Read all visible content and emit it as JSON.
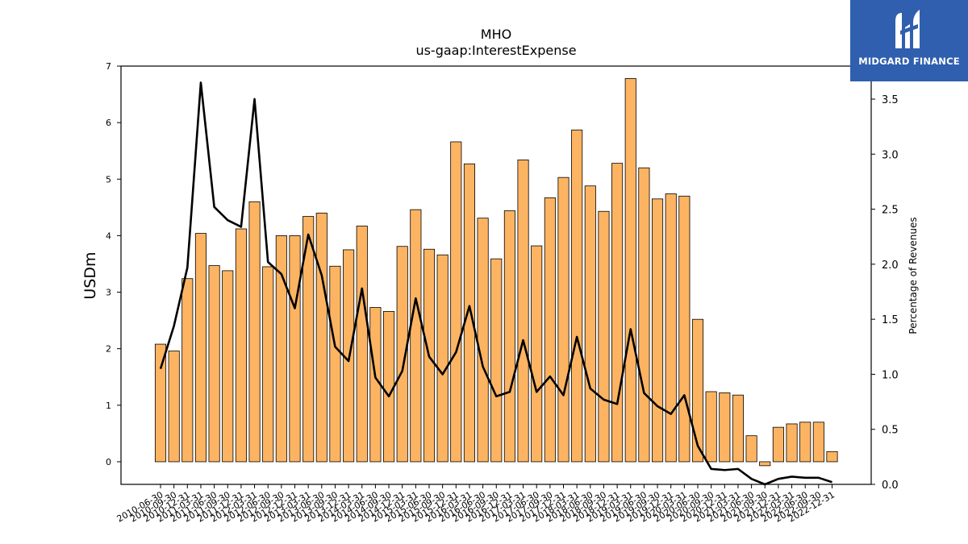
{
  "chart_data": {
    "type": "bar",
    "title": "MHO",
    "subtitle": "us-gaap:InterestExpense",
    "ylabel": "USDm",
    "y2label": "Percentage of Revenues",
    "ylim": [
      -0.4,
      7
    ],
    "y2lim": [
      0,
      3.8
    ],
    "yticks": [
      0,
      1,
      2,
      3,
      4,
      5,
      6,
      7
    ],
    "y2ticks": [
      0.0,
      0.5,
      1.0,
      1.5,
      2.0,
      2.5,
      3.0,
      3.5
    ],
    "bar_color": "#fdb462",
    "line_color": "#000000",
    "categories": [
      "2010-06-30",
      "2010-09-30",
      "2010-12-31",
      "2011-03-31",
      "2011-06-30",
      "2011-09-30",
      "2011-12-31",
      "2012-03-31",
      "2012-06-30",
      "2012-09-30",
      "2012-12-31",
      "2013-03-31",
      "2013-06-30",
      "2013-09-30",
      "2013-12-31",
      "2014-03-31",
      "2014-06-30",
      "2014-09-30",
      "2014-12-31",
      "2015-03-31",
      "2015-06-30",
      "2015-09-30",
      "2015-12-31",
      "2016-03-31",
      "2016-06-30",
      "2016-09-30",
      "2016-12-31",
      "2017-03-31",
      "2017-06-30",
      "2017-09-30",
      "2017-12-31",
      "2018-03-31",
      "2018-06-30",
      "2018-09-30",
      "2018-12-31",
      "2019-03-31",
      "2019-06-30",
      "2019-09-30",
      "2019-12-31",
      "2020-03-31",
      "2020-06-30",
      "2020-09-30",
      "2020-12-31",
      "2021-03-31",
      "2021-06-30",
      "2021-09-30",
      "2021-12-31",
      "2022-03-31",
      "2022-06-30",
      "2022-09-30",
      "2022-12-31"
    ],
    "series": [
      {
        "kind": "bar",
        "axis": "left",
        "values": [
          2.08,
          1.96,
          3.24,
          4.04,
          3.47,
          3.38,
          4.12,
          4.6,
          3.45,
          4.0,
          4.0,
          4.34,
          4.4,
          3.46,
          3.75,
          4.17,
          2.73,
          2.66,
          3.81,
          4.46,
          3.76,
          3.66,
          5.66,
          5.27,
          4.31,
          3.59,
          4.44,
          5.34,
          3.82,
          4.67,
          5.03,
          5.87,
          4.88,
          4.43,
          5.28,
          6.78,
          5.2,
          4.65,
          4.74,
          4.7,
          2.52,
          1.24,
          1.22,
          1.18,
          0.46,
          -0.07,
          0.61,
          0.67,
          0.7,
          0.7,
          0.18
        ]
      },
      {
        "kind": "line",
        "axis": "right",
        "values": [
          1.05,
          1.44,
          1.97,
          3.65,
          2.52,
          2.4,
          2.34,
          3.5,
          2.02,
          1.91,
          1.6,
          2.27,
          1.9,
          1.25,
          1.12,
          1.78,
          0.97,
          0.8,
          1.03,
          1.69,
          1.16,
          1.0,
          1.2,
          1.62,
          1.07,
          0.8,
          0.84,
          1.31,
          0.84,
          0.98,
          0.81,
          1.34,
          0.87,
          0.77,
          0.73,
          1.41,
          0.83,
          0.71,
          0.64,
          0.81,
          0.35,
          0.14,
          0.13,
          0.14,
          0.05,
          0.0,
          0.05,
          0.07,
          0.06,
          0.06,
          0.02
        ]
      }
    ]
  },
  "logo": {
    "text": "MIDGARD FINANCE"
  }
}
